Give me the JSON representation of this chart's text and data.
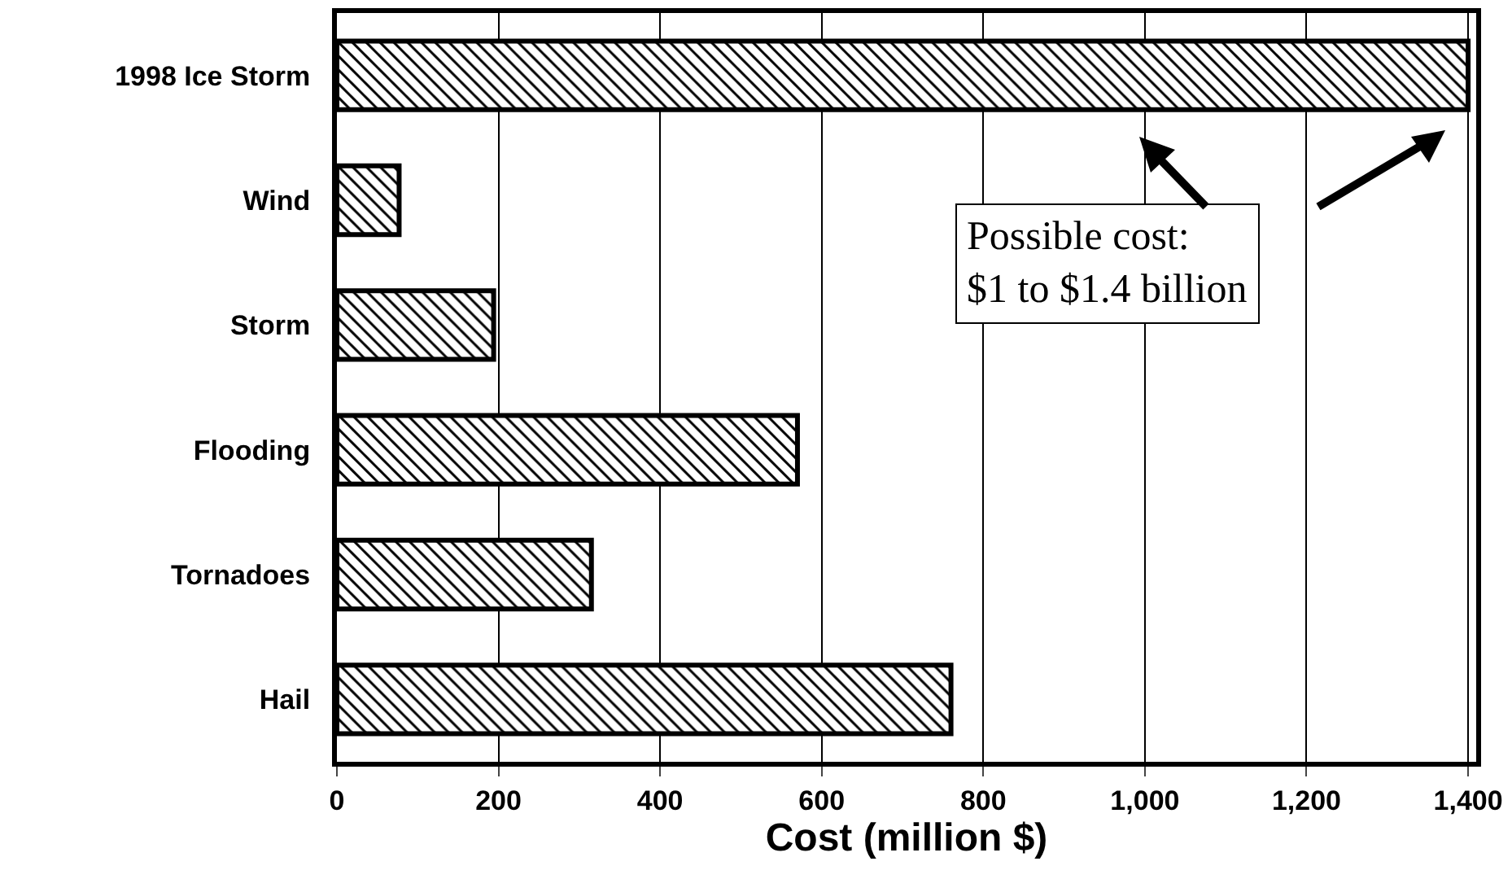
{
  "chart_data": {
    "type": "bar",
    "orientation": "horizontal",
    "xlabel": "Cost (million $)",
    "categories": [
      "1998 Ice Storm",
      "Wind",
      "Storm",
      "Flooding",
      "Tornadoes",
      "Hail"
    ],
    "values": [
      1400,
      77,
      194,
      570,
      315,
      760
    ],
    "color": "#000000",
    "xlim": [
      0,
      1410
    ],
    "xticks": [
      0,
      200,
      400,
      600,
      800,
      {
        "value": 1000,
        "label": "1,000"
      },
      {
        "value": 1200,
        "label": "1,200"
      },
      {
        "value": 1400,
        "label": "1,400"
      }
    ],
    "grid": "x",
    "legend": false,
    "annotations": [
      "Possible cost:\n$1 to $1.4 billion"
    ]
  }
}
